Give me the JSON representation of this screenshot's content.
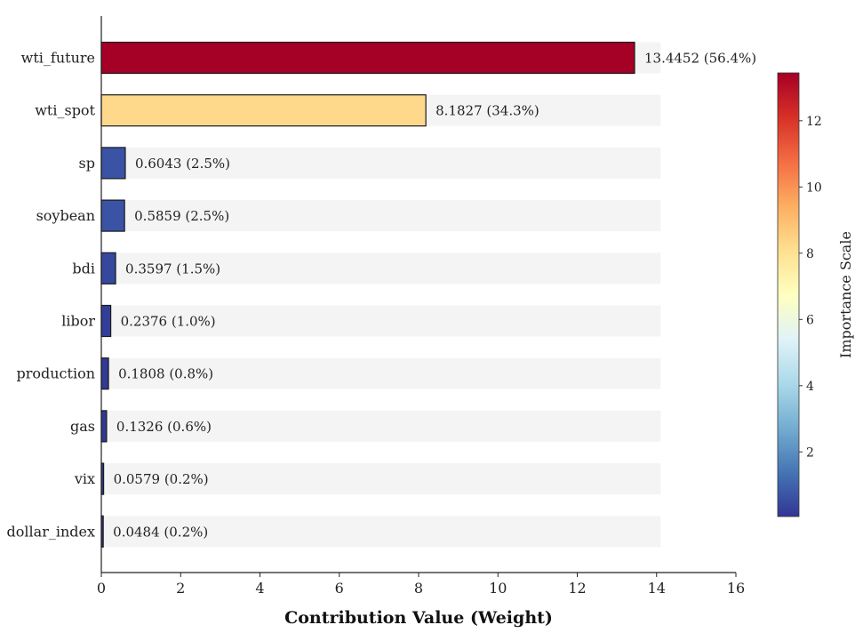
{
  "chart_data": {
    "type": "bar",
    "orientation": "horizontal",
    "categories": [
      "wti_future",
      "wti_spot",
      "sp",
      "soybean",
      "bdi",
      "libor",
      "production",
      "gas",
      "vix",
      "dollar_index"
    ],
    "values": [
      13.4452,
      8.1827,
      0.6043,
      0.5859,
      0.3597,
      0.2376,
      0.1808,
      0.1326,
      0.0579,
      0.0484
    ],
    "value_labels": [
      "13.4452 (56.4%)",
      "8.1827 (34.3%)",
      "0.6043 (2.5%)",
      "0.5859 (2.5%)",
      "0.3597 (1.5%)",
      "0.2376 (1.0%)",
      "0.1808 (0.8%)",
      "0.1326 (0.6%)",
      "0.0579 (0.2%)",
      "0.0484 (0.2%)"
    ],
    "bar_colors": [
      "#a50026",
      "#fed98b",
      "#3a53a4",
      "#3a53a4",
      "#36489e",
      "#333e98",
      "#313a94",
      "#313892",
      "#313695",
      "#313695"
    ],
    "background_track_max": 14.1,
    "track_color": "#f4f4f4",
    "xlabel": "Contribution Value (Weight)",
    "xlim": [
      0,
      16
    ],
    "xticks": [
      "0",
      "2",
      "4",
      "6",
      "8",
      "10",
      "12",
      "14",
      "16"
    ],
    "grid": false,
    "colorbar": {
      "label": "Importance Scale",
      "range": [
        0.0484,
        13.4452
      ],
      "ticks": [
        "2",
        "4",
        "6",
        "8",
        "10",
        "12"
      ],
      "colormap": [
        "#313695",
        "#4575b4",
        "#74add1",
        "#abd9e9",
        "#e0f3f8",
        "#ffffbf",
        "#fee090",
        "#fdae61",
        "#f46d43",
        "#d73027",
        "#a50026"
      ]
    }
  }
}
